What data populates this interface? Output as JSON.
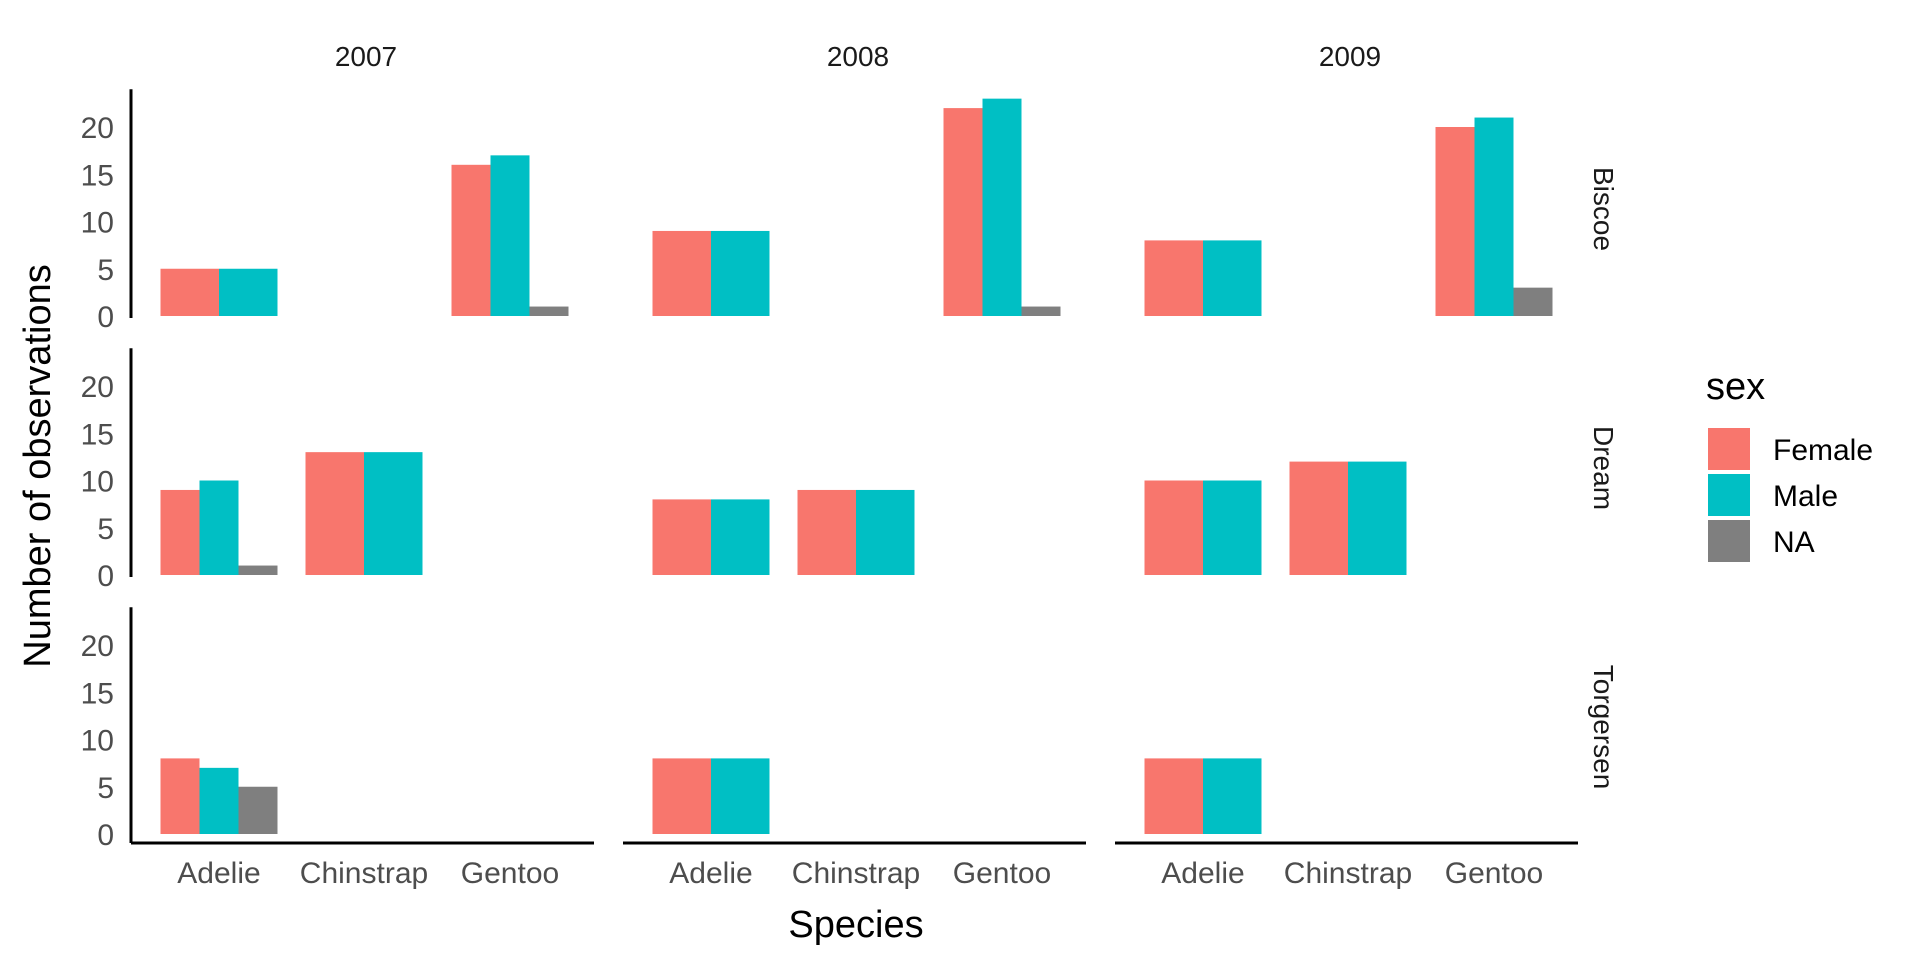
{
  "chart_data": {
    "type": "bar",
    "xlabel": "Species",
    "ylabel": "Number of observations",
    "ylim": [
      0,
      24
    ],
    "yticks": [
      0,
      5,
      10,
      15,
      20
    ],
    "grid": false,
    "legend": {
      "title": "sex",
      "position": "right",
      "entries": [
        {
          "name": "Female",
          "color": "#F8766D"
        },
        {
          "name": "Male",
          "color": "#00BFC4"
        },
        {
          "name": "NA",
          "color": "#7F7F7F"
        }
      ]
    },
    "facet_cols": [
      "2007",
      "2008",
      "2009"
    ],
    "facet_rows": [
      "Biscoe",
      "Dream",
      "Torgersen"
    ],
    "categories": [
      "Adelie",
      "Chinstrap",
      "Gentoo"
    ],
    "series": [
      "Female",
      "Male",
      "NA"
    ],
    "panels": [
      {
        "year": "2007",
        "island": "Biscoe",
        "bars": {
          "Adelie": {
            "Female": 5,
            "Male": 5
          },
          "Gentoo": {
            "Female": 16,
            "Male": 17,
            "NA": 1
          }
        }
      },
      {
        "year": "2008",
        "island": "Biscoe",
        "bars": {
          "Adelie": {
            "Female": 9,
            "Male": 9
          },
          "Gentoo": {
            "Female": 22,
            "Male": 23,
            "NA": 1
          }
        }
      },
      {
        "year": "2009",
        "island": "Biscoe",
        "bars": {
          "Adelie": {
            "Female": 8,
            "Male": 8
          },
          "Gentoo": {
            "Female": 20,
            "Male": 21,
            "NA": 3
          }
        }
      },
      {
        "year": "2007",
        "island": "Dream",
        "bars": {
          "Adelie": {
            "Female": 9,
            "Male": 10,
            "NA": 1
          },
          "Chinstrap": {
            "Female": 13,
            "Male": 13
          }
        }
      },
      {
        "year": "2008",
        "island": "Dream",
        "bars": {
          "Adelie": {
            "Female": 8,
            "Male": 8
          },
          "Chinstrap": {
            "Female": 9,
            "Male": 9
          }
        }
      },
      {
        "year": "2009",
        "island": "Dream",
        "bars": {
          "Adelie": {
            "Female": 10,
            "Male": 10
          },
          "Chinstrap": {
            "Female": 12,
            "Male": 12
          }
        }
      },
      {
        "year": "2007",
        "island": "Torgersen",
        "bars": {
          "Adelie": {
            "Female": 8,
            "Male": 7,
            "NA": 5
          }
        }
      },
      {
        "year": "2008",
        "island": "Torgersen",
        "bars": {
          "Adelie": {
            "Female": 8,
            "Male": 8
          }
        }
      },
      {
        "year": "2009",
        "island": "Torgersen",
        "bars": {
          "Adelie": {
            "Female": 8,
            "Male": 8
          }
        }
      }
    ]
  }
}
